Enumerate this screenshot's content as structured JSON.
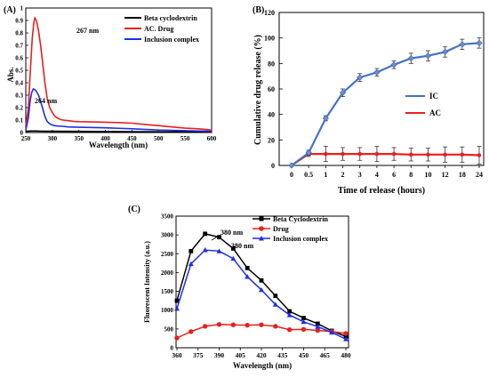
{
  "panels": [
    {
      "id": "A",
      "panel_label": "(A)",
      "xlabel": "Wavelength (nm)",
      "ylabel": "Abs.",
      "x_ticks": [
        "250",
        "300",
        "350",
        "400",
        "450",
        "500",
        "550",
        "600"
      ],
      "y_ticks": [
        "0",
        "0.1",
        "0.2",
        "0.3",
        "0.4",
        "0.5",
        "0.6",
        "0.7",
        "0.8",
        "0.9",
        "1"
      ],
      "legend": [
        "Beta cyclodextrin",
        "AC. Drug",
        "Inclusion complex"
      ],
      "annotations": [
        "267 nm",
        "264 nm"
      ]
    },
    {
      "id": "B",
      "panel_label": "(B)",
      "xlabel": "Time of release (hours)",
      "ylabel": "Cumulative drug release (%)",
      "x_ticks": [
        "0",
        "0.5",
        "1",
        "2",
        "3",
        "4",
        "6",
        "8",
        "10",
        "12",
        "18",
        "24"
      ],
      "y_ticks": [
        "0",
        "20",
        "40",
        "60",
        "80",
        "100",
        "120"
      ],
      "legend": [
        "IC",
        "AC"
      ]
    },
    {
      "id": "C",
      "panel_label": "(C)",
      "xlabel": "Wavelength (nm)",
      "ylabel": "Fluorescent Intensity (a.u.)",
      "x_ticks": [
        "360",
        "375",
        "390",
        "405",
        "420",
        "435",
        "450",
        "465",
        "480"
      ],
      "y_ticks": [
        "0",
        "500",
        "1000",
        "1500",
        "2000",
        "2500",
        "3000",
        "3500"
      ],
      "legend": [
        "Beta Cyclodextrin",
        "Drug",
        "Inclusion complex"
      ],
      "annotations": [
        "380 nm",
        "380 nm"
      ]
    }
  ],
  "chart_data": [
    {
      "type": "line",
      "panel": "A",
      "xlabel": "Wavelength (nm)",
      "ylabel": "Abs.",
      "xlim": [
        250,
        600
      ],
      "ylim": [
        0,
        1
      ],
      "legend_position": "top-right",
      "series": [
        {
          "name": "Beta cyclodextrin",
          "color": "#000000",
          "x": [
            250,
            260,
            270,
            280,
            300,
            350,
            400,
            450,
            500,
            550,
            600
          ],
          "y": [
            0.01,
            0.012,
            0.012,
            0.011,
            0.01,
            0.009,
            0.008,
            0.007,
            0.006,
            0.005,
            0.005
          ]
        },
        {
          "name": "AC. Drug",
          "color": "#e8201f",
          "x": [
            250,
            255,
            258,
            262,
            265,
            267,
            270,
            274,
            278,
            282,
            286,
            290,
            295,
            300,
            305,
            310,
            315,
            320,
            330,
            340,
            350,
            375,
            400,
            425,
            450,
            475,
            500,
            525,
            550,
            575,
            600
          ],
          "y": [
            0.05,
            0.2,
            0.45,
            0.75,
            0.88,
            0.92,
            0.9,
            0.82,
            0.7,
            0.55,
            0.4,
            0.28,
            0.2,
            0.16,
            0.13,
            0.115,
            0.105,
            0.1,
            0.095,
            0.09,
            0.087,
            0.085,
            0.083,
            0.08,
            0.075,
            0.065,
            0.055,
            0.045,
            0.035,
            0.03,
            0.02
          ]
        },
        {
          "name": "Inclusion complex",
          "color": "#1f2ee8",
          "x": [
            250,
            255,
            258,
            261,
            264,
            267,
            270,
            274,
            278,
            282,
            286,
            290,
            295,
            300,
            305,
            310,
            320,
            330,
            350,
            400,
            450,
            500,
            550,
            600
          ],
          "y": [
            0.02,
            0.12,
            0.25,
            0.32,
            0.35,
            0.345,
            0.33,
            0.3,
            0.25,
            0.19,
            0.13,
            0.09,
            0.07,
            0.06,
            0.055,
            0.052,
            0.05,
            0.045,
            0.042,
            0.038,
            0.03,
            0.02,
            0.015,
            0.01
          ]
        }
      ],
      "annotations": [
        {
          "text": "267 nm",
          "x": 267,
          "y": 0.92
        },
        {
          "text": "264 nm",
          "x": 264,
          "y": 0.35
        }
      ]
    },
    {
      "type": "line",
      "panel": "B",
      "xlabel": "Time of release (hours)",
      "ylabel": "Cumulative drug release (%)",
      "categories": [
        "0",
        "0.5",
        "1",
        "2",
        "3",
        "4",
        "6",
        "8",
        "10",
        "12",
        "18",
        "24"
      ],
      "ylim": [
        0,
        120
      ],
      "legend_position": "center-right",
      "series": [
        {
          "name": "IC",
          "color": "#4472c4",
          "values": [
            0,
            10,
            37,
            57,
            69,
            73,
            79,
            84,
            86,
            89,
            95,
            96
          ],
          "error": [
            0,
            2,
            2,
            3,
            3,
            3,
            3,
            4,
            4,
            4,
            4,
            4
          ]
        },
        {
          "name": "AC",
          "color": "#e8201f",
          "values": [
            0,
            9,
            9,
            9,
            9,
            9,
            9,
            8.5,
            8.5,
            8.5,
            8.5,
            8
          ],
          "error": [
            0,
            2,
            6,
            5,
            5,
            6,
            5,
            5,
            5,
            6,
            6,
            7
          ]
        }
      ]
    },
    {
      "type": "line",
      "panel": "C",
      "xlabel": "Wavelength (nm)",
      "ylabel": "Fluorescent Intensity (a.u.)",
      "xlim": [
        360,
        480
      ],
      "ylim": [
        0,
        3500
      ],
      "legend_position": "top-right",
      "series": [
        {
          "name": "Beta Cyclodextrin",
          "color": "#000000",
          "x": [
            360,
            370,
            380,
            390,
            400,
            410,
            420,
            430,
            440,
            450,
            460,
            470,
            480
          ],
          "y": [
            1250,
            2570,
            3030,
            2940,
            2640,
            2120,
            1790,
            1380,
            970,
            790,
            640,
            450,
            300
          ]
        },
        {
          "name": "Drug",
          "color": "#e8201f",
          "x": [
            360,
            370,
            380,
            390,
            400,
            410,
            420,
            430,
            440,
            450,
            460,
            470,
            480
          ],
          "y": [
            260,
            430,
            570,
            620,
            610,
            600,
            610,
            570,
            480,
            490,
            460,
            430,
            380
          ]
        },
        {
          "name": "Inclusion complex",
          "color": "#1f2ee8",
          "x": [
            360,
            370,
            380,
            390,
            400,
            410,
            420,
            430,
            440,
            450,
            460,
            470,
            480
          ],
          "y": [
            1040,
            2230,
            2600,
            2570,
            2370,
            1890,
            1540,
            1150,
            870,
            690,
            560,
            410,
            230
          ]
        }
      ],
      "annotations": [
        {
          "text": "380 nm",
          "x": 380,
          "y": 3030
        },
        {
          "text": "380 nm",
          "x": 390,
          "y": 2600
        }
      ]
    }
  ]
}
